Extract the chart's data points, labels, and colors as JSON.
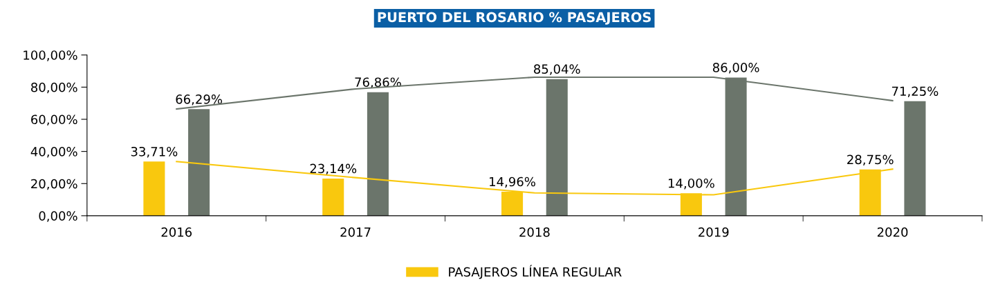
{
  "chart_data": {
    "type": "bar",
    "title": "PUERTO DEL ROSARIO % PASAJEROS",
    "categories": [
      "2016",
      "2017",
      "2018",
      "2019",
      "2020"
    ],
    "series": [
      {
        "name": "PASAJEROS LÍNEA REGULAR",
        "color": "#f9c80e",
        "values": [
          33.71,
          23.14,
          14.96,
          14.0,
          28.75
        ],
        "value_labels": [
          "33,71%",
          "23,14%",
          "14,96%",
          "14,00%",
          "28,75%"
        ]
      },
      {
        "color": "#6b756b",
        "values": [
          66.29,
          76.86,
          85.04,
          86.0,
          71.25
        ],
        "value_labels": [
          "66,29%",
          "76,86%",
          "85,04%",
          "86,00%",
          "71,25%"
        ]
      },
      {
        "type": "line",
        "color": "#f9c80e",
        "values": [
          33.7,
          23.7,
          14.2,
          13.0,
          29.0
        ]
      },
      {
        "type": "line",
        "color": "#6b756b",
        "values": [
          66.4,
          78.9,
          86.2,
          86.2,
          71.6
        ]
      }
    ],
    "ylim": [
      0,
      100
    ],
    "yticks": [
      {
        "value": 0,
        "label": "0,00%"
      },
      {
        "value": 20,
        "label": "20,00%"
      },
      {
        "value": 40,
        "label": "40,00%"
      },
      {
        "value": 60,
        "label": "60,00%"
      },
      {
        "value": 80,
        "label": "80,00%"
      },
      {
        "value": 100,
        "label": "100,00%"
      }
    ],
    "grid": false,
    "legend": "bottom"
  }
}
